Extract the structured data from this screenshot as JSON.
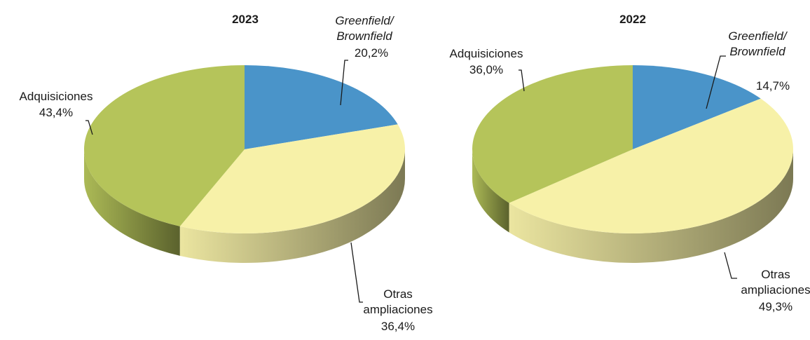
{
  "chart_data": [
    {
      "type": "pie3d",
      "title": "2023",
      "categories": [
        "Greenfield/ Brownfield",
        "Otras ampliaciones",
        "Adquisiciones"
      ],
      "values": [
        20.2,
        36.4,
        43.4
      ],
      "value_labels": [
        "20,2%",
        "36,4%",
        "43,4%"
      ],
      "colors": [
        "#4a94c9",
        "#f7f1a8",
        "#b5c45a"
      ]
    },
    {
      "type": "pie3d",
      "title": "2022",
      "categories": [
        "Greenfield/ Brownfield",
        "Otras ampliaciones",
        "Adquisiciones"
      ],
      "values": [
        14.7,
        49.3,
        36.0
      ],
      "value_labels": [
        "14,7%",
        "49,3%",
        "36,0%"
      ],
      "colors": [
        "#4a94c9",
        "#f7f1a8",
        "#b5c45a"
      ]
    }
  ]
}
